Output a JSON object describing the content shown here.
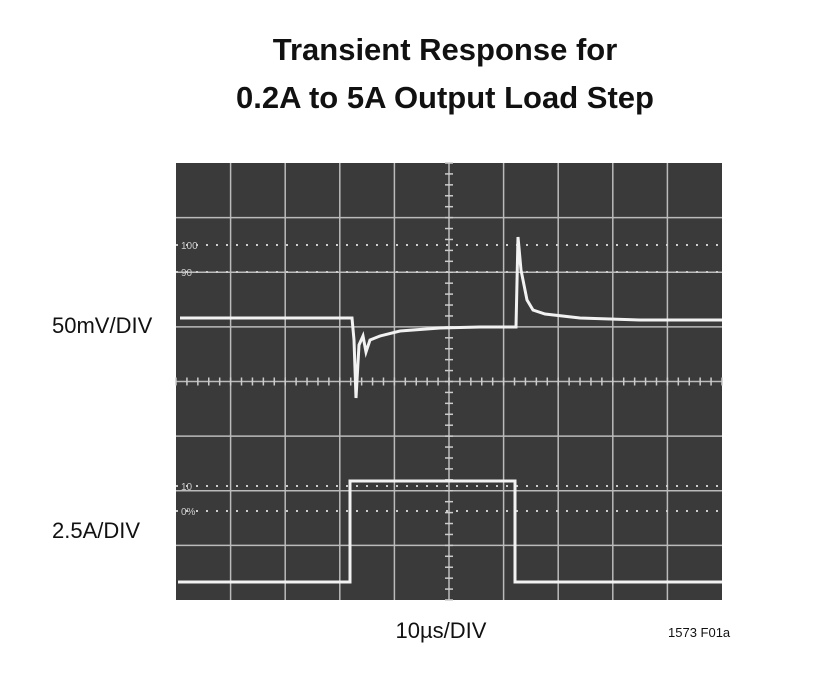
{
  "header": {
    "title_lines": [
      "Transient Response for",
      "0.2A to 5A Output Load Step"
    ]
  },
  "scope": {
    "markers": [
      "100",
      "90",
      "10",
      "0%"
    ]
  },
  "labels": {
    "voltage_scale": "50mV/DIV",
    "current_scale": "2.5A/DIV",
    "time_scale": "10µs/DIV",
    "figure_id": "1573 F01a"
  }
}
